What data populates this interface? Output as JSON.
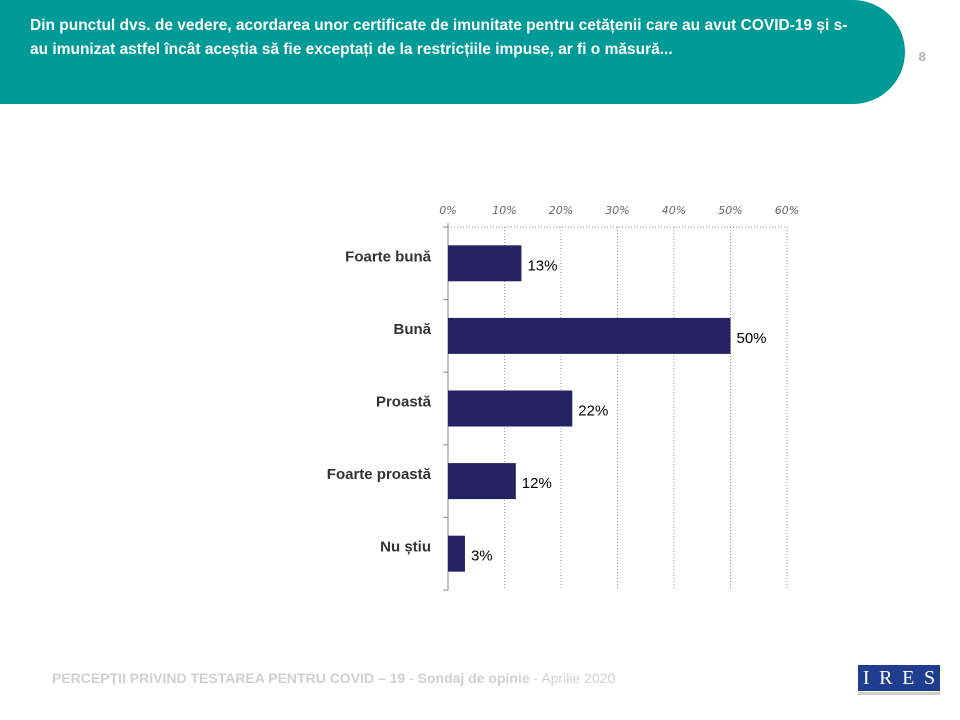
{
  "header": {
    "question": "Din punctul dvs. de vedere, acordarea unor certificate de imunitate pentru cetățenii care au avut COVID-19 și s-au imunizat astfel încât aceștia să fie exceptați de la restricțiile impuse, ar fi o măsură...",
    "page_number": "8"
  },
  "colors": {
    "header": "#009a97",
    "bar": "#262262"
  },
  "chart_data": {
    "type": "bar",
    "orientation": "horizontal",
    "categories": [
      "Foarte bună",
      "Bună",
      "Proastă",
      "Foarte proastă",
      "Nu știu"
    ],
    "values": [
      13,
      50,
      22,
      12,
      3
    ],
    "data_labels": [
      "13%",
      "50%",
      "22%",
      "12%",
      "3%"
    ],
    "xlim": [
      0,
      60
    ],
    "ticks": [
      0,
      10,
      20,
      30,
      40,
      50,
      60
    ],
    "tick_labels": [
      "0%",
      "10%",
      "20%",
      "30%",
      "40%",
      "50%",
      "60%"
    ],
    "axis_position": "top",
    "grid": true,
    "title": "",
    "xlabel": "",
    "ylabel": ""
  },
  "footer": {
    "title": "PERCEPȚII PRIVIND TESTAREA PENTRU COVID – 19",
    "sep1": " - ",
    "survey": "Sondaj de opinie",
    "sep2": " - ",
    "date": "Aprilie 2020"
  },
  "logo": {
    "letters": [
      "I",
      "R",
      "E",
      "S"
    ]
  }
}
